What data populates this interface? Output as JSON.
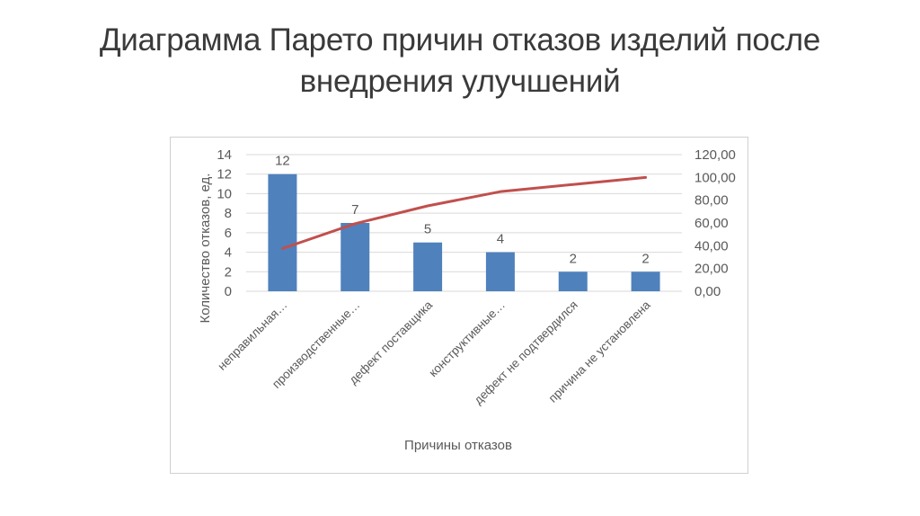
{
  "title_lines": [
    "Диаграмма Парето причин отказов изделий после",
    "внедрения улучшений"
  ],
  "chart_data": {
    "type": "bar",
    "title": "Диаграмма Парето причин отказов изделий после внедрения улучшений",
    "xlabel": "Причины отказов",
    "ylabel": "Количество отказов, ед.",
    "categories": [
      "неправильная…",
      "производственные…",
      "дефект поставщика",
      "конструктивные…",
      "дефект не подтвердился",
      "причина не установлена"
    ],
    "series": [
      {
        "type": "bar",
        "axis": "left",
        "values": [
          12,
          7,
          5,
          4,
          2,
          2
        ],
        "color": "#4f81bd",
        "data_labels": true
      },
      {
        "type": "line",
        "axis": "right",
        "values": [
          37.5,
          59.38,
          75.0,
          87.5,
          93.75,
          100.0
        ],
        "color": "#c0504d"
      }
    ],
    "ylim": [
      0,
      14
    ],
    "yticks": [
      "0",
      "2",
      "4",
      "6",
      "8",
      "10",
      "12",
      "14"
    ],
    "y2lim": [
      0,
      120
    ],
    "y2ticks": [
      "0,00",
      "20,00",
      "40,00",
      "60,00",
      "80,00",
      "100,00",
      "120,00"
    ],
    "grid": true,
    "legend": "none"
  }
}
